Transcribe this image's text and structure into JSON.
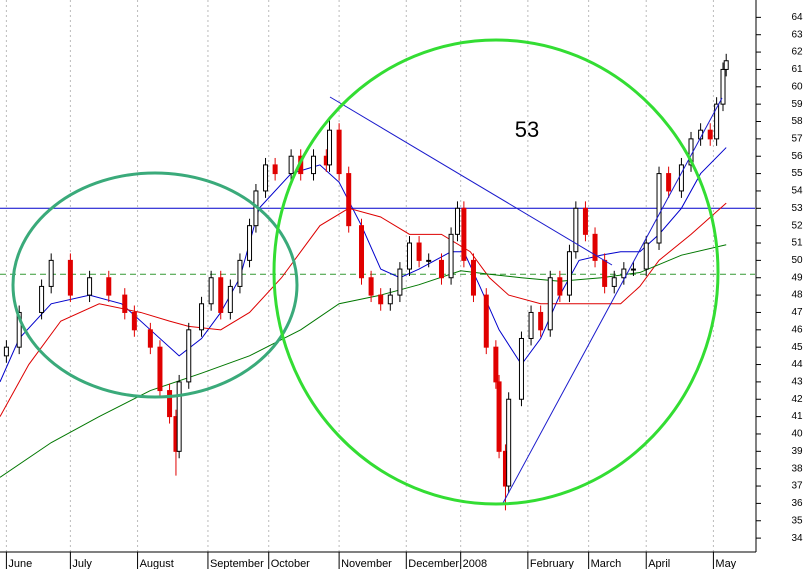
{
  "chart_data": {
    "type": "candlestick",
    "annotation": "53",
    "x": [
      2,
      6,
      13,
      16,
      22,
      28,
      34,
      39,
      42,
      47,
      50,
      53,
      55,
      56,
      59,
      63,
      66,
      69,
      72,
      75,
      78,
      80,
      83,
      86,
      91,
      94,
      98,
      102,
      103,
      106,
      109,
      113,
      116,
      119,
      122,
      125,
      128,
      131,
      134,
      138,
      141,
      143,
      145,
      148,
      152,
      155,
      156,
      158,
      159,
      163,
      166,
      169,
      172,
      175,
      178,
      180,
      183,
      186,
      189,
      192,
      195,
      198,
      202,
      206,
      209,
      213,
      216,
      219,
      222,
      224,
      226,
      227
    ],
    "open": [
      44.5,
      45,
      47,
      48.5,
      50,
      48,
      49,
      48,
      47,
      46,
      45,
      42.5,
      41,
      39,
      43,
      46,
      47.5,
      49,
      47,
      48.5,
      50,
      52,
      54,
      55.5,
      55,
      56,
      55,
      56,
      55.5,
      57.5,
      55,
      52,
      49,
      48,
      47.5,
      48,
      49.5,
      51,
      50,
      50,
      49,
      51.5,
      53,
      50,
      48,
      45,
      43,
      39,
      37,
      42,
      45.5,
      47,
      46,
      49,
      48,
      50.5,
      53,
      51.5,
      50,
      48.5,
      49,
      49.5,
      49.5,
      51,
      55,
      54,
      55.5,
      57,
      57.5,
      57,
      59,
      61
    ],
    "high": [
      45.4,
      47.4,
      48.9,
      50.4,
      50.4,
      49.4,
      49.4,
      48.4,
      47.4,
      46.4,
      45.4,
      42.9,
      41.4,
      43.4,
      46.4,
      47.9,
      49.4,
      49.4,
      48.9,
      50.4,
      52.4,
      54.4,
      55.9,
      55.9,
      56.4,
      56.4,
      56.4,
      56.4,
      58.2,
      57.9,
      55.4,
      52.4,
      49.4,
      48.4,
      48.4,
      49.9,
      51.4,
      51.4,
      50.4,
      50.4,
      51.9,
      53.4,
      53.4,
      50.4,
      48.4,
      45.4,
      43.4,
      39.4,
      42.4,
      45.9,
      47.4,
      47.4,
      49.4,
      49.4,
      50.9,
      53.4,
      53.4,
      51.9,
      50.4,
      49.4,
      49.9,
      49.9,
      51.4,
      55.4,
      55.4,
      55.9,
      57.4,
      57.9,
      57.9,
      59.4,
      61.4,
      61.9
    ],
    "low": [
      44.1,
      44.6,
      46.6,
      48.1,
      47.6,
      47.6,
      47.6,
      46.6,
      45.6,
      44.6,
      42.1,
      40.6,
      37.6,
      38.6,
      42.6,
      45.6,
      47.1,
      46.6,
      46.6,
      48.1,
      49.6,
      51.6,
      53.6,
      54.6,
      54.6,
      54.6,
      54.6,
      55.1,
      55.1,
      54.6,
      51.6,
      48.6,
      47.6,
      47.1,
      47.1,
      47.6,
      49.1,
      49.6,
      49.6,
      48.6,
      48.6,
      51.1,
      49.6,
      47.6,
      44.6,
      42.6,
      38.6,
      35.6,
      36.6,
      41.6,
      45.1,
      45.6,
      45.6,
      47.6,
      47.6,
      50.1,
      51.1,
      49.6,
      48.1,
      48.1,
      48.6,
      49.1,
      49.1,
      50.6,
      53.6,
      53.6,
      55.1,
      56.6,
      56.6,
      56.6,
      58.6,
      60.6
    ],
    "close": [
      45,
      47,
      48.5,
      50,
      48,
      49,
      48,
      47,
      46,
      45,
      42.5,
      41,
      39,
      43,
      46,
      47.5,
      49,
      47,
      48.5,
      50,
      52,
      54,
      55.5,
      55,
      56,
      55,
      56,
      55.5,
      57.5,
      55,
      52,
      49,
      48,
      47.5,
      48,
      49.5,
      51,
      50,
      50,
      49,
      51.5,
      53,
      50,
      48,
      45,
      43,
      39,
      37,
      42,
      45.5,
      47,
      46,
      49,
      48,
      50.5,
      53,
      51.5,
      50,
      48.5,
      49,
      49.5,
      49.5,
      51,
      55,
      54,
      55.5,
      57,
      57.5,
      57,
      59,
      61,
      61.5
    ],
    "up_color": "#000000",
    "down_color": "#e00000",
    "overlays": [
      {
        "color": "#0000cc",
        "x": [
          0,
          6,
          16,
          28,
          38,
          47,
          56,
          63,
          69,
          75,
          81,
          91,
          100,
          106,
          113,
          119,
          125,
          131,
          141,
          145,
          150,
          156,
          163,
          169,
          175,
          181,
          188,
          194,
          200,
          206,
          213,
          219,
          227
        ],
        "values": [
          43,
          45.5,
          47.5,
          48,
          47.5,
          46,
          44.5,
          45.5,
          47,
          49,
          53,
          55,
          55.5,
          54.5,
          52,
          49.5,
          49,
          49.5,
          50.5,
          50.5,
          48.5,
          46,
          44,
          45.5,
          48,
          50,
          50.3,
          50.5,
          50.5,
          51.5,
          53,
          55,
          56.5
        ]
      },
      {
        "color": "#dd0000",
        "x": [
          0,
          9,
          19,
          31,
          44,
          53,
          59,
          69,
          78,
          88,
          94,
          100,
          109,
          119,
          128,
          138,
          147,
          153,
          159,
          169,
          178,
          188,
          194,
          200,
          206,
          216,
          227
        ],
        "values": [
          41,
          44,
          46.5,
          47.5,
          47,
          46.5,
          46.2,
          46,
          47,
          49,
          50.5,
          52,
          53,
          52.5,
          51.5,
          51.5,
          50.5,
          49,
          48,
          47.5,
          47.5,
          47.5,
          47.5,
          48.5,
          50,
          51.5,
          53.3
        ]
      },
      {
        "color": "#007700",
        "x": [
          0,
          16,
          31,
          47,
          63,
          78,
          94,
          106,
          119,
          131,
          144,
          153,
          163,
          175,
          188,
          200,
          213,
          227
        ],
        "values": [
          37.5,
          39.5,
          41,
          42.5,
          43.5,
          44.5,
          46,
          47.5,
          48,
          48.6,
          49.4,
          49.2,
          49,
          48.8,
          49,
          49.3,
          50.3,
          50.9
        ]
      }
    ],
    "hlines": [
      {
        "value": 53,
        "color": "#0000cc"
      },
      {
        "value": 49.2,
        "color": "#339933",
        "dash": true
      }
    ],
    "xlim": [
      0,
      236
    ],
    "xticks": [
      {
        "value": 2,
        "label": "June"
      },
      {
        "value": 22,
        "label": "July"
      },
      {
        "value": 43,
        "label": "August"
      },
      {
        "value": 65,
        "label": "September"
      },
      {
        "value": 84,
        "label": "October"
      },
      {
        "value": 106,
        "label": "November"
      },
      {
        "value": 127,
        "label": "December"
      },
      {
        "value": 144,
        "label": "2008"
      },
      {
        "value": 165,
        "label": "February"
      },
      {
        "value": 184,
        "label": "March"
      },
      {
        "value": 202,
        "label": "April"
      },
      {
        "value": 223,
        "label": "May"
      }
    ],
    "ylim": [
      33.2,
      65
    ],
    "yticks": [
      34,
      35,
      36,
      37,
      38,
      39,
      40,
      41,
      42,
      43,
      44,
      45,
      46,
      47,
      48,
      49,
      50,
      51,
      52,
      53,
      54,
      55,
      56,
      57,
      58,
      59,
      60,
      61,
      62,
      63,
      64
    ],
    "grid": true
  }
}
